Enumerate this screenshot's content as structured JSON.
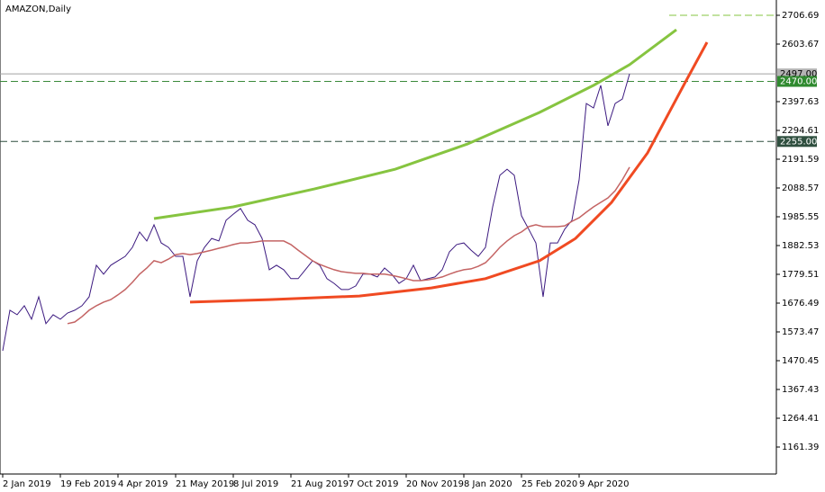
{
  "chart_data": {
    "type": "line",
    "title": "AMAZON,Daily",
    "x": [
      0,
      4,
      8,
      12,
      16,
      20,
      24,
      28,
      32,
      36,
      40,
      44,
      48,
      52,
      56,
      60,
      64,
      68,
      72,
      76,
      80,
      84,
      88,
      92,
      96,
      100,
      104,
      108,
      112,
      116,
      120,
      124,
      128,
      132,
      136,
      140,
      144,
      148,
      152,
      156,
      160,
      164,
      168,
      172,
      176,
      180,
      184,
      188,
      192,
      196,
      200,
      204,
      208,
      212,
      216,
      220,
      224,
      228,
      232,
      236,
      240,
      244,
      248,
      252,
      256,
      260,
      264,
      268,
      272,
      276,
      280,
      284,
      288,
      292,
      296,
      300,
      304,
      308,
      312,
      316,
      320,
      324,
      328,
      332,
      336,
      340,
      344,
      348
    ],
    "series": [
      {
        "color": "#3c1a80",
        "values": [
          1506,
          1651,
          1635,
          1667,
          1619,
          1699,
          1603,
          1635,
          1619,
          1641,
          1651,
          1667,
          1699,
          1812,
          1780,
          1812,
          1828,
          1844,
          1876,
          1931,
          1899,
          1957,
          1892,
          1876,
          1844,
          1844,
          1699,
          1828,
          1876,
          1908,
          1899,
          1973,
          1995,
          2015,
          1973,
          1957,
          1908,
          1796,
          1812,
          1796,
          1764,
          1764,
          1796,
          1828,
          1812,
          1764,
          1747,
          1725,
          1725,
          1738,
          1780,
          1780,
          1770,
          1802,
          1780,
          1747,
          1764,
          1812,
          1757,
          1764,
          1770,
          1796,
          1860,
          1886,
          1892,
          1866,
          1844,
          1876,
          2021,
          2134,
          2156,
          2134,
          1989,
          1941,
          1892,
          1699,
          1892,
          1892,
          1941,
          1973,
          2118,
          2391,
          2375,
          2456,
          2311,
          2391,
          2407,
          2497
        ]
      },
      {
        "color": "#c46464",
        "values": [
          null,
          null,
          null,
          null,
          null,
          null,
          null,
          null,
          null,
          1603,
          1609,
          1628,
          1651,
          1667,
          1680,
          1689,
          1706,
          1725,
          1751,
          1780,
          1802,
          1828,
          1821,
          1834,
          1850,
          1854,
          1850,
          1854,
          1860,
          1866,
          1873,
          1879,
          1886,
          1892,
          1892,
          1895,
          1899,
          1899,
          1899,
          1899,
          1886,
          1866,
          1847,
          1828,
          1815,
          1805,
          1796,
          1789,
          1786,
          1783,
          1783,
          1780,
          1780,
          1780,
          1776,
          1770,
          1764,
          1757,
          1757,
          1760,
          1764,
          1770,
          1780,
          1789,
          1796,
          1799,
          1808,
          1821,
          1847,
          1876,
          1899,
          1918,
          1931,
          1950,
          1957,
          1950,
          1950,
          1950,
          1953,
          1969,
          1982,
          2002,
          2021,
          2037,
          2053,
          2079,
          2118,
          2163
        ]
      }
    ],
    "curves": [
      {
        "color": "#86c440",
        "x": [
          84,
          128,
          173,
          218,
          258,
          298,
          328,
          348,
          374
        ],
        "values": [
          1979,
          2021,
          2085,
          2156,
          2246,
          2359,
          2456,
          2530,
          2655
        ]
      },
      {
        "color": "#f04a22",
        "x": [
          104,
          148,
          198,
          238,
          268,
          298,
          318,
          338,
          358,
          378,
          391
        ],
        "values": [
          1680,
          1689,
          1702,
          1731,
          1764,
          1828,
          1908,
          2037,
          2214,
          2456,
          2610
        ]
      }
    ],
    "levels": [
      {
        "value": 2706.69,
        "color": "#86c440",
        "style": "dashed",
        "from": 370
      },
      {
        "value": 2497,
        "label": "2497.00",
        "color": "#a0a0a0",
        "style": "solid",
        "label_bg": "#b4b4b4",
        "label_color": "#000000"
      },
      {
        "value": 2470,
        "label": "2470.00",
        "color": "#3a8a3a",
        "style": "dashed",
        "label_bg": "#2f8a2f",
        "label_color": "#ffffff"
      },
      {
        "value": 2255,
        "label": "2255.00",
        "color": "#2f4f3f",
        "style": "dashed",
        "label_bg": "#2f4f3f",
        "label_color": "#ffffff"
      }
    ],
    "xlim": [
      -1.5,
      429.5
    ],
    "ylim": [
      1064.8,
      2761.4
    ],
    "xticks": [
      {
        "value": 0,
        "label": "2 Jan 2019"
      },
      {
        "value": 32,
        "label": "19 Feb 2019"
      },
      {
        "value": 64,
        "label": "4 Apr 2019"
      },
      {
        "value": 96,
        "label": "21 May 2019"
      },
      {
        "value": 128,
        "label": "8 Jul 2019"
      },
      {
        "value": 160,
        "label": "21 Aug 2019"
      },
      {
        "value": 192,
        "label": "7 Oct 2019"
      },
      {
        "value": 224,
        "label": "20 Nov 2019"
      },
      {
        "value": 256,
        "label": "8 Jan 2020"
      },
      {
        "value": 288,
        "label": "25 Feb 2020"
      },
      {
        "value": 320,
        "label": "9 Apr 2020"
      }
    ],
    "yticks": [
      2706.69,
      2603.67,
      2397.63,
      2294.61,
      2191.59,
      2088.57,
      1985.55,
      1882.53,
      1779.51,
      1676.49,
      1573.47,
      1470.45,
      1367.43,
      1264.41,
      1161.39
    ]
  }
}
